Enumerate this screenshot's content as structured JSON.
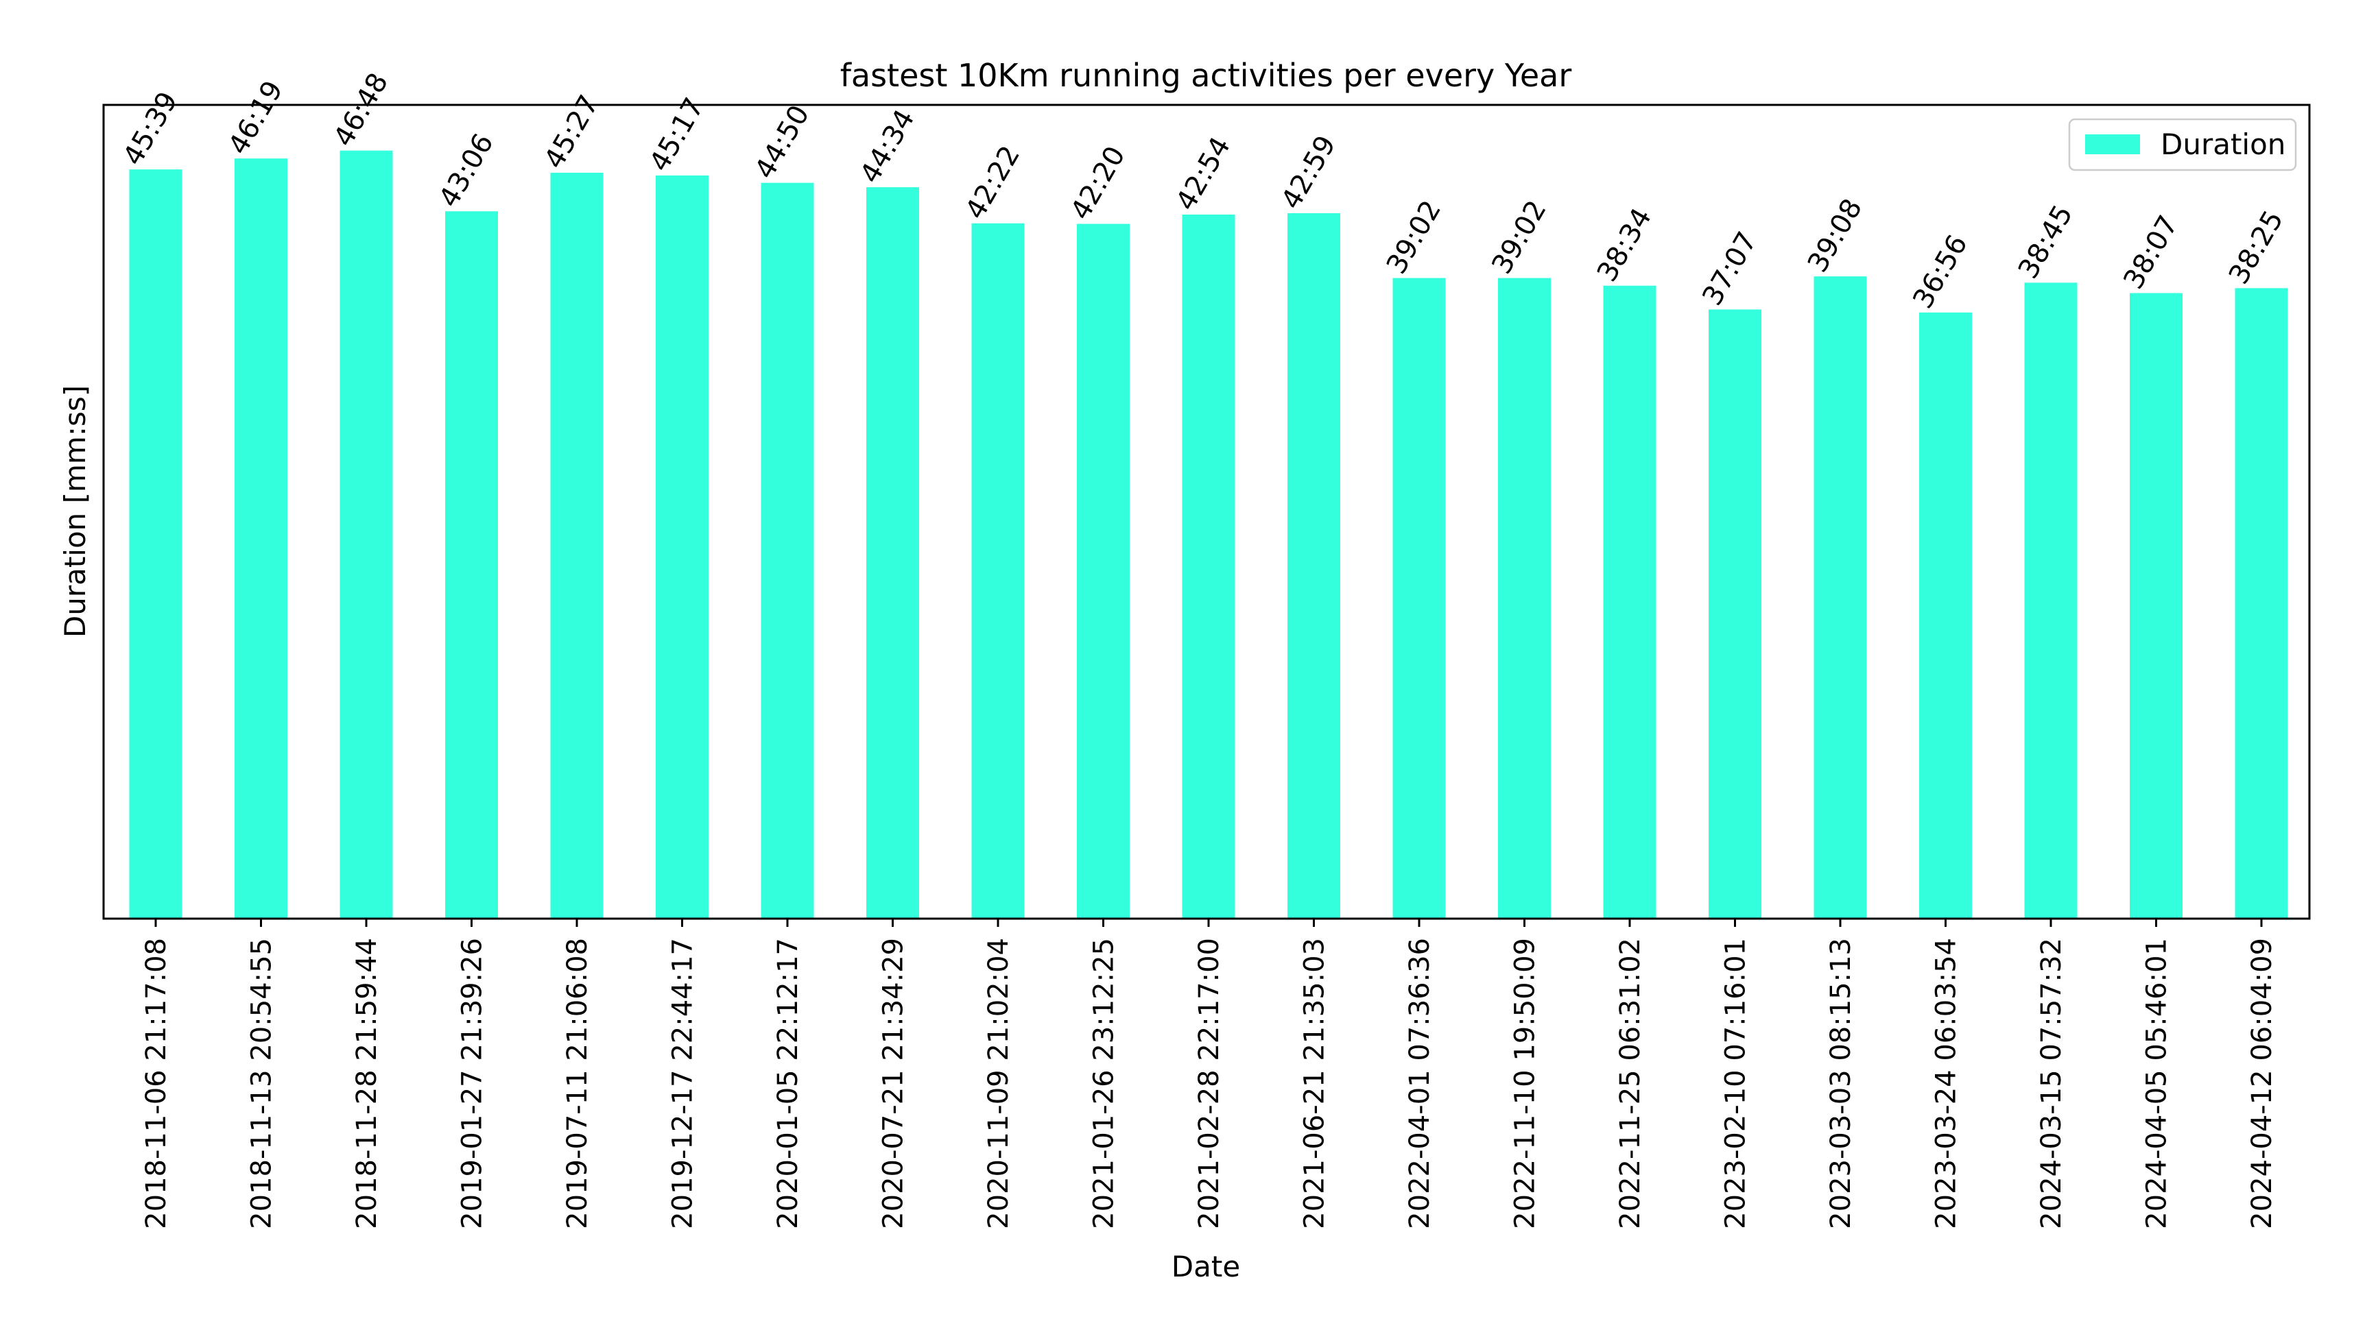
{
  "chart_data": {
    "type": "bar",
    "title": "fastest 10Km running activities per every Year",
    "xlabel": "Date",
    "ylabel": "Duration [mm:ss]",
    "legend": {
      "labels": [
        "Duration"
      ],
      "position": "top-right"
    },
    "grid": false,
    "y_ticks_shown": false,
    "ylim_seconds": [
      0,
      2975
    ],
    "bar_color": "#33FFDD",
    "categories": [
      "2018-11-06 21:17:08",
      "2018-11-13 20:54:55",
      "2018-11-28 21:59:44",
      "2019-01-27 21:39:26",
      "2019-07-11 21:06:08",
      "2019-12-17 22:44:17",
      "2020-01-05 22:12:17",
      "2020-07-21 21:34:29",
      "2020-11-09 21:02:04",
      "2021-01-26 23:12:25",
      "2021-02-28 22:17:00",
      "2021-06-21 21:35:03",
      "2022-04-01 07:36:36",
      "2022-11-10 19:50:09",
      "2022-11-25 06:31:02",
      "2023-02-10 07:16:01",
      "2023-03-03 08:15:13",
      "2023-03-24 06:03:54",
      "2024-03-15 07:57:32",
      "2024-04-05 05:46:01",
      "2024-04-12 06:04:09"
    ],
    "series": [
      {
        "name": "Duration",
        "labels": [
          "45:39",
          "46:19",
          "46:48",
          "43:06",
          "45:27",
          "45:17",
          "44:50",
          "44:34",
          "42:22",
          "42:20",
          "42:54",
          "42:59",
          "39:02",
          "39:02",
          "38:34",
          "37:07",
          "39:08",
          "36:56",
          "38:45",
          "38:07",
          "38:25"
        ],
        "values_seconds": [
          2739,
          2779,
          2808,
          2586,
          2727,
          2717,
          2690,
          2674,
          2542,
          2540,
          2574,
          2579,
          2342,
          2342,
          2314,
          2227,
          2348,
          2216,
          2325,
          2287,
          2305
        ]
      }
    ]
  }
}
